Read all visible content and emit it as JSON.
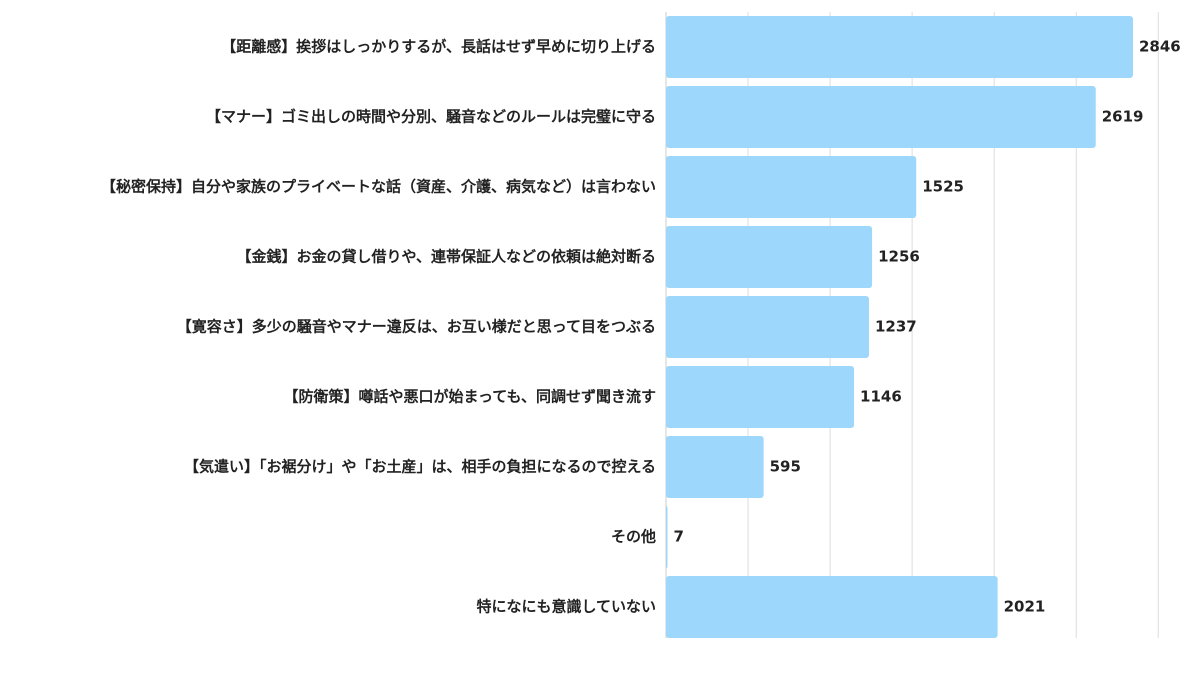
{
  "colors": {
    "bar": "#9dd8fc",
    "grid": "#dddddd",
    "axis": "#cccccc",
    "text": "#222222",
    "background": "#ffffff"
  },
  "chart_data": {
    "type": "bar",
    "orientation": "horizontal",
    "title": "",
    "xlabel": "",
    "ylabel": "",
    "grid": true,
    "xlim": [
      0,
      3000
    ],
    "categories": [
      "【距離感】挨拶はしっかりするが、長話はせず早めに切り上げる",
      "【マナー】ゴミ出しの時間や分別、騒音などのルールは完璧に守る",
      "【秘密保持】自分や家族のプライベートな話（資産、介護、病気など）は言わない",
      "【金銭】お金の貸し借りや、連帯保証人などの依頼は絶対断る",
      "【寛容さ】多少の騒音やマナー違反は、お互い様だと思って目をつぶる",
      "【防衛策】噂話や悪口が始まっても、同調せず聞き流す",
      "【気遣い】「お裾分け」や「お土産」は、相手の負担になるので控える",
      "その他",
      "特になにも意識していない"
    ],
    "values": [
      2846,
      2619,
      1525,
      1256,
      1237,
      1146,
      595,
      7,
      2021
    ]
  }
}
